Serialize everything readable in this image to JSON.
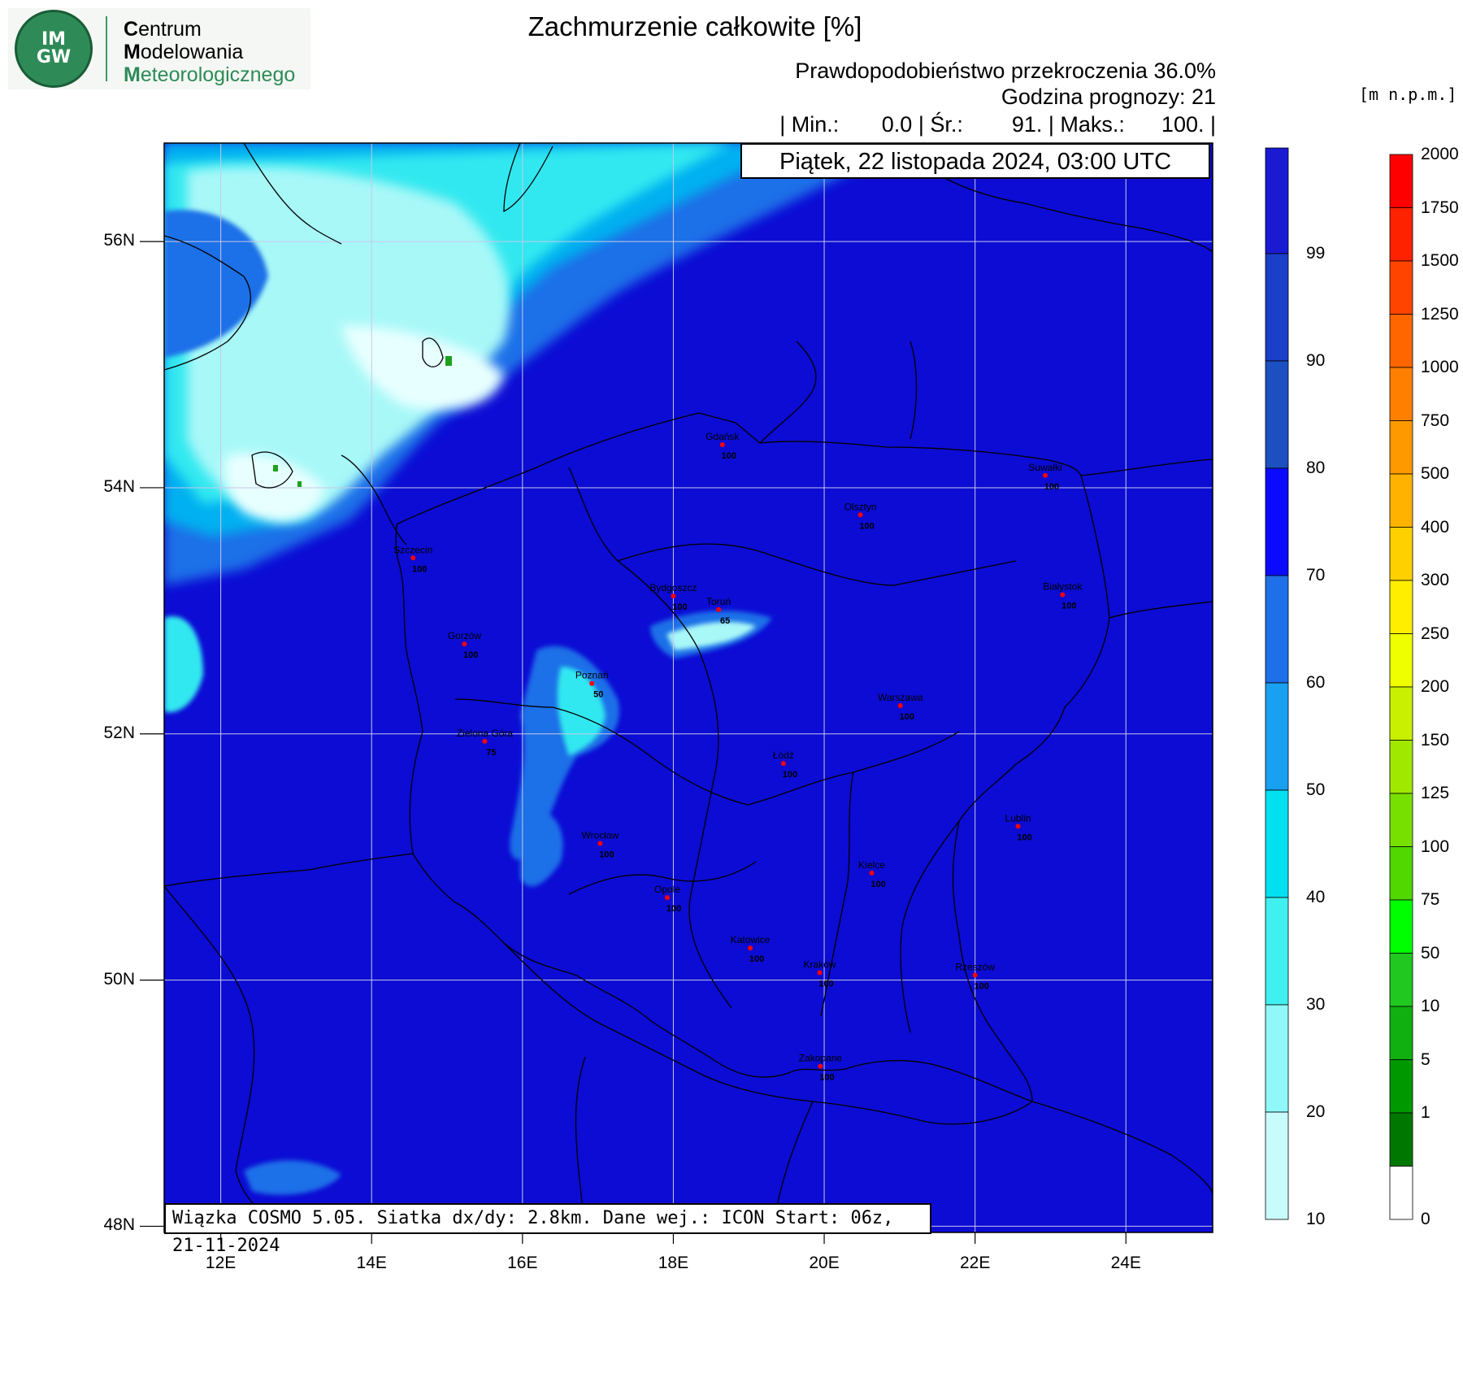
{
  "logo": {
    "badge_top": "IM",
    "badge_bottom": "GW",
    "line1_initial": "C",
    "line1_rest": "entrum",
    "line2_initial": "M",
    "line2_rest": "odelowania",
    "line3_initial": "M",
    "line3_rest": "eteorologicznego",
    "color": "#2e8b57"
  },
  "header": {
    "title": "Zachmurzenie całkowite [%]",
    "probability": "Prawdopodobieństwo przekroczenia 36.0%",
    "forecast_hour": "Godzina prognozy: 21",
    "stats_line": "| Min.:       0.0 | Śr.:        91. | Maks.:      100. |",
    "date": "Piątek, 22 listopada 2024, 03:00 UTC"
  },
  "footer": {
    "model_info": "Wiązka COSMO 5.05. Siatka dx/dy: 2.8km. Dane wej.: ICON Start: 06z, 21-11-2024"
  },
  "axes": {
    "lat_labels": [
      "56N",
      "54N",
      "52N",
      "50N",
      "48N"
    ],
    "lat_values": [
      56,
      54,
      52,
      50,
      48
    ],
    "lon_labels": [
      "12E",
      "14E",
      "16E",
      "18E",
      "20E",
      "22E",
      "24E"
    ],
    "lon_values": [
      12,
      14,
      16,
      18,
      20,
      22,
      24
    ],
    "lon_range": [
      11.25,
      25.15
    ],
    "lat_range": [
      47.95,
      56.8
    ]
  },
  "cloud_colorbar": {
    "labels": [
      "99",
      "90",
      "80",
      "70",
      "60",
      "50",
      "40",
      "30",
      "20",
      "10"
    ],
    "colors": [
      "#1a1ad2",
      "#1a3fc8",
      "#1c50c0",
      "#0a0aff",
      "#1f6fe8",
      "#1aa0f0",
      "#00e0f0",
      "#40f0f0",
      "#90f8f8",
      "#c8fcfc",
      "#e8ffff"
    ]
  },
  "terrain_colorbar": {
    "unit": "[m  n.p.m.]",
    "labels": [
      "2000",
      "1750",
      "1500",
      "1250",
      "1000",
      "750",
      "500",
      "400",
      "300",
      "250",
      "200",
      "150",
      "125",
      "100",
      "75",
      "50",
      "10",
      "5",
      "1",
      "0"
    ],
    "colors": [
      "#ff0000",
      "#ff2200",
      "#ff4400",
      "#ff6600",
      "#ff7f00",
      "#ff9900",
      "#ffb300",
      "#ffd000",
      "#ffee00",
      "#f0ff00",
      "#c8f000",
      "#a0e800",
      "#78e000",
      "#50d800",
      "#00ff00",
      "#20c820",
      "#10b010",
      "#009800",
      "#007800",
      "#ffffff"
    ]
  },
  "cities": [
    {
      "name": "Gdańsk",
      "value": "100",
      "lon": 18.65,
      "lat": 54.35
    },
    {
      "name": "Suwałki",
      "value": "100",
      "lon": 22.93,
      "lat": 54.1
    },
    {
      "name": "Olsztyn",
      "value": "100",
      "lon": 20.48,
      "lat": 53.78
    },
    {
      "name": "Szczecin",
      "value": "100",
      "lon": 14.55,
      "lat": 53.43
    },
    {
      "name": "Bydgoszcz",
      "value": "100",
      "lon": 18.0,
      "lat": 53.12
    },
    {
      "name": "Toruń",
      "value": "65",
      "lon": 18.6,
      "lat": 53.01
    },
    {
      "name": "Białystok",
      "value": "100",
      "lon": 23.16,
      "lat": 53.13
    },
    {
      "name": "Gorzów",
      "value": "100",
      "lon": 15.23,
      "lat": 52.73
    },
    {
      "name": "Poznań",
      "value": "50",
      "lon": 16.92,
      "lat": 52.41
    },
    {
      "name": "Warszawa",
      "value": "100",
      "lon": 21.01,
      "lat": 52.23
    },
    {
      "name": "Zielona Góra",
      "value": "75",
      "lon": 15.5,
      "lat": 51.94
    },
    {
      "name": "Łódź",
      "value": "100",
      "lon": 19.46,
      "lat": 51.76
    },
    {
      "name": "Wrocław",
      "value": "100",
      "lon": 17.03,
      "lat": 51.11
    },
    {
      "name": "Lublin",
      "value": "100",
      "lon": 22.57,
      "lat": 51.25
    },
    {
      "name": "Kielce",
      "value": "100",
      "lon": 20.63,
      "lat": 50.87
    },
    {
      "name": "Opole",
      "value": "100",
      "lon": 17.92,
      "lat": 50.67
    },
    {
      "name": "Katowice",
      "value": "100",
      "lon": 19.02,
      "lat": 50.26
    },
    {
      "name": "Kraków",
      "value": "100",
      "lon": 19.94,
      "lat": 50.06
    },
    {
      "name": "Rzeszów",
      "value": "100",
      "lon": 22.0,
      "lat": 50.04
    },
    {
      "name": "Zakopane",
      "value": "100",
      "lon": 19.95,
      "lat": 49.3
    }
  ],
  "colors": {
    "field_background": "#0c0cd4",
    "city_marker": "#ff0000",
    "grid": "#c8c8e8"
  }
}
